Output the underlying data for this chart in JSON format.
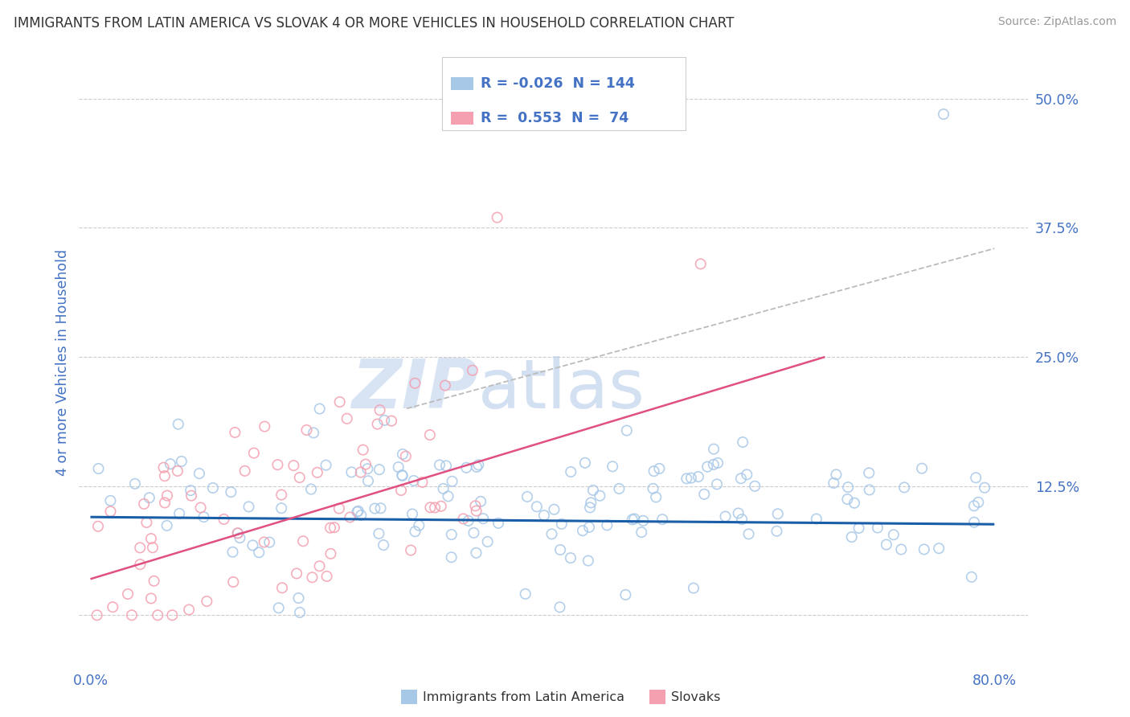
{
  "title": "IMMIGRANTS FROM LATIN AMERICA VS SLOVAK 4 OR MORE VEHICLES IN HOUSEHOLD CORRELATION CHART",
  "source": "Source: ZipAtlas.com",
  "ylabel": "4 or more Vehicles in Household",
  "xlim": [
    -1.0,
    83.0
  ],
  "ylim": [
    -5.0,
    54.0
  ],
  "xticks": [
    0.0,
    20.0,
    40.0,
    60.0,
    80.0
  ],
  "yticks": [
    0.0,
    12.5,
    25.0,
    37.5,
    50.0
  ],
  "xtick_labels": [
    "0.0%",
    "",
    "",
    "",
    "80.0%"
  ],
  "ytick_labels": [
    "",
    "12.5%",
    "25.0%",
    "37.5%",
    "50.0%"
  ],
  "watermark_zip": "ZIP",
  "watermark_atlas": "atlas",
  "legend_text1": "R = -0.026  N = 144",
  "legend_text2": "R =  0.553  N =  74",
  "color_blue_scatter": "#a8c8e8",
  "color_pink_scatter": "#f4a0b0",
  "color_blue_line": "#1a5ea8",
  "color_pink_line": "#e05080",
  "color_gray_line": "#bbbbbb",
  "color_axis_label": "#4472c4",
  "color_tick": "#4472c4",
  "color_source": "#999999",
  "color_watermark_zip": "#c8d8f0",
  "color_watermark_atlas": "#b0c8e8",
  "color_grid": "#cccccc",
  "color_legend_border": "#cccccc",
  "color_legend_text": "#4472c4",
  "legend_label1": "Immigrants from Latin America",
  "legend_label2": "Slovaks",
  "trendline_blue": [
    0.0,
    80.0,
    9.5,
    8.8
  ],
  "trendline_pink": [
    0.0,
    65.0,
    3.5,
    25.0
  ],
  "trendline_gray": [
    28.0,
    80.0,
    20.0,
    35.5
  ]
}
